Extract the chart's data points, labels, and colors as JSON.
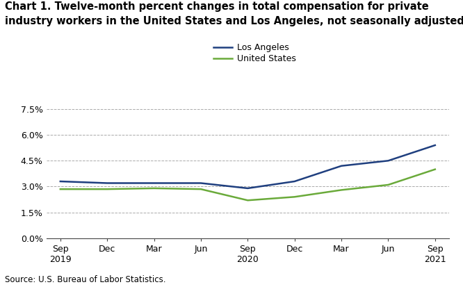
{
  "title_line1": "Chart 1. Twelve-month percent changes in total compensation for private",
  "title_line2": "industry workers in the United States and Los Angeles, not seasonally adjusted",
  "source": "Source: U.S. Bureau of Labor Statistics.",
  "x_labels": [
    "Sep\n2019",
    "Dec",
    "Mar",
    "Jun",
    "Sep\n2020",
    "Dec",
    "Mar",
    "Jun",
    "Sep\n2021"
  ],
  "x_positions": [
    0,
    1,
    2,
    3,
    4,
    5,
    6,
    7,
    8
  ],
  "los_angeles": [
    3.3,
    3.2,
    3.2,
    3.2,
    2.9,
    3.3,
    4.2,
    4.5,
    5.4
  ],
  "united_states": [
    2.85,
    2.85,
    2.9,
    2.85,
    2.2,
    2.4,
    2.8,
    3.1,
    4.0
  ],
  "la_color": "#1f3f7f",
  "us_color": "#6aaa3a",
  "yticks": [
    0.0,
    1.5,
    3.0,
    4.5,
    6.0,
    7.5
  ],
  "ytick_labels": [
    "0.0%",
    "1.5%",
    "3.0%",
    "4.5%",
    "6.0%",
    "7.5%"
  ],
  "grid_color": "#aaaaaa",
  "background_color": "#ffffff",
  "legend_la": "Los Angeles",
  "legend_us": "United States",
  "line_width": 1.8
}
